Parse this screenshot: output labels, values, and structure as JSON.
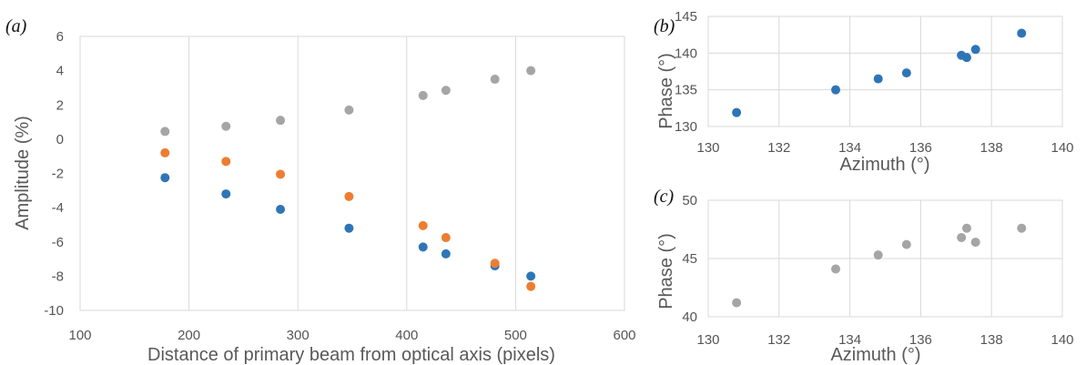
{
  "chart_data": [
    {
      "panel_label": "(a)",
      "type": "scatter",
      "xlabel": "Distance of primary beam from optical axis (pixels)",
      "ylabel": "Amplitude (%)",
      "xlim": [
        100,
        600
      ],
      "ylim": [
        -10,
        6
      ],
      "x_ticks": [
        "100",
        "200",
        "300",
        "400",
        "500",
        "600"
      ],
      "y_ticks": [
        "-10",
        "-8",
        "-6",
        "-4",
        "-2",
        "0",
        "2",
        "4",
        "6"
      ],
      "grid": "vertical",
      "series": [
        {
          "color": "#2e75b6",
          "x": [
            178,
            234,
            284,
            347,
            415,
            436,
            481,
            514
          ],
          "y": [
            -2.25,
            -3.2,
            -4.1,
            -5.2,
            -6.3,
            -6.7,
            -7.4,
            -8.0
          ]
        },
        {
          "color": "#ed7d31",
          "x": [
            178,
            234,
            284,
            347,
            415,
            436,
            481,
            514
          ],
          "y": [
            -0.8,
            -1.3,
            -2.05,
            -3.35,
            -5.05,
            -5.75,
            -7.25,
            -8.6
          ]
        },
        {
          "color": "#a5a5a5",
          "x": [
            178,
            234,
            284,
            347,
            415,
            436,
            481,
            514
          ],
          "y": [
            0.45,
            0.75,
            1.1,
            1.7,
            2.55,
            2.85,
            3.5,
            4.0
          ]
        }
      ]
    },
    {
      "panel_label": "(b)",
      "type": "scatter",
      "xlabel": "Azimuth (°)",
      "ylabel": "Phase (°)",
      "xlim": [
        130,
        140
      ],
      "ylim": [
        130,
        145
      ],
      "x_ticks": [
        "130",
        "132",
        "134",
        "136",
        "138",
        "140"
      ],
      "y_ticks": [
        "130",
        "135",
        "140",
        "145"
      ],
      "grid": "both",
      "series": [
        {
          "color": "#2e75b6",
          "x": [
            130.8,
            133.6,
            134.8,
            135.6,
            137.15,
            137.3,
            137.55,
            138.85
          ],
          "y": [
            131.9,
            135.0,
            136.5,
            137.3,
            139.7,
            139.4,
            140.5,
            142.7
          ]
        }
      ]
    },
    {
      "panel_label": "(c)",
      "type": "scatter",
      "xlabel": "Azimuth (°)",
      "ylabel": "Phase (°)",
      "xlim": [
        130,
        140
      ],
      "ylim": [
        40,
        50
      ],
      "x_ticks": [
        "130",
        "132",
        "134",
        "136",
        "138",
        "140"
      ],
      "y_ticks": [
        "40",
        "45",
        "50"
      ],
      "grid": "both",
      "series": [
        {
          "color": "#a5a5a5",
          "x": [
            130.8,
            133.6,
            134.8,
            135.6,
            137.15,
            137.3,
            137.55,
            138.85
          ],
          "y": [
            41.2,
            44.1,
            45.3,
            46.2,
            46.8,
            47.6,
            46.4,
            47.6
          ]
        }
      ]
    }
  ]
}
